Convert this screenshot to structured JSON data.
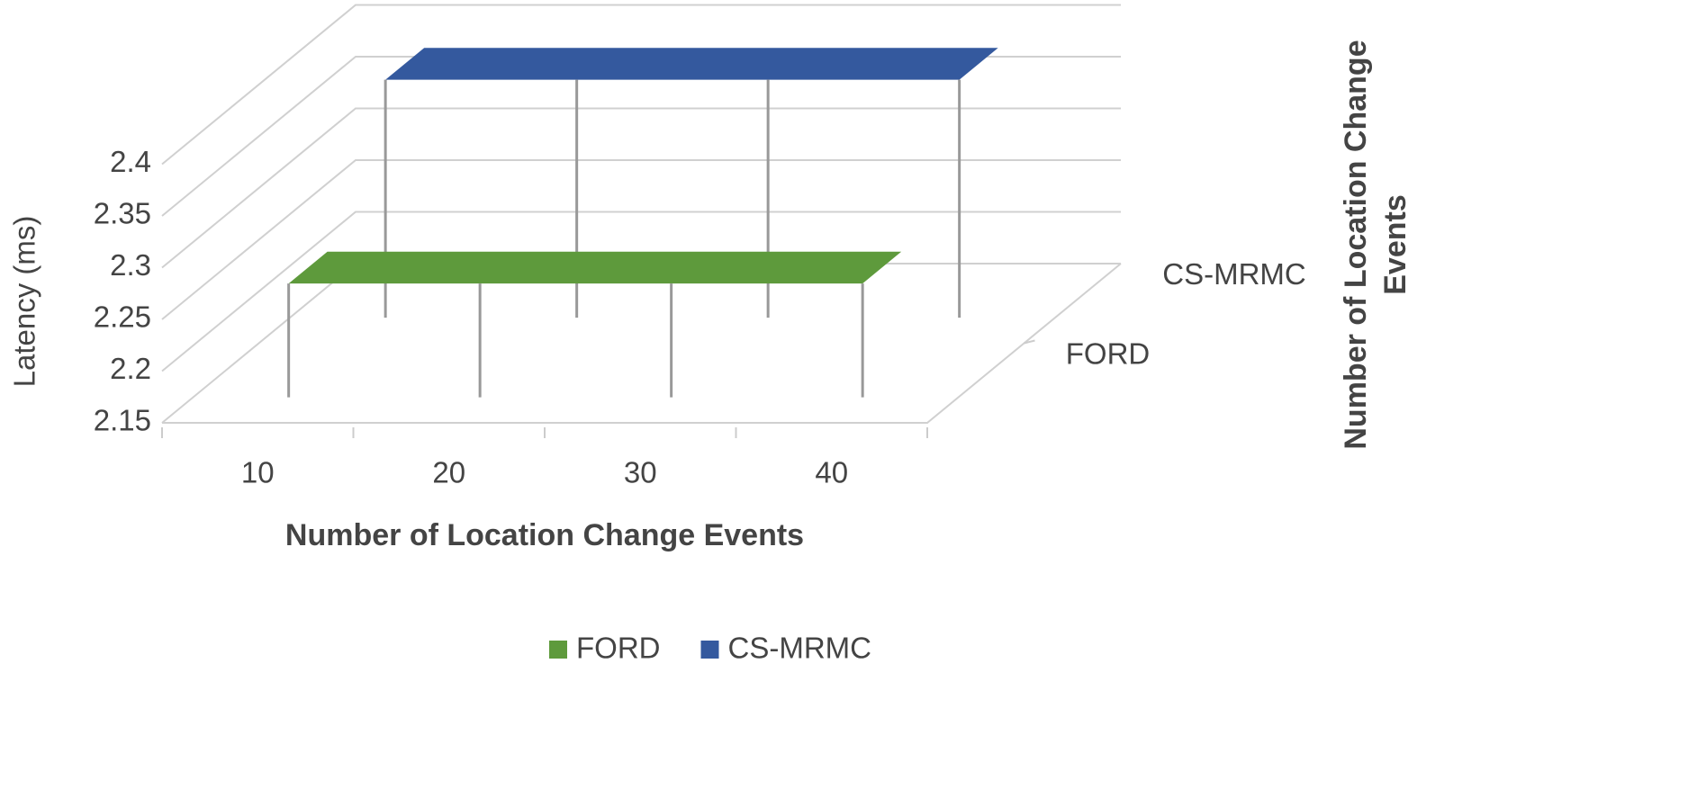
{
  "chart_data": {
    "type": "3d-line",
    "x_label": "Number of Location Change Events",
    "y_label": "Latency (ms)",
    "z_label": "Number of Location Change Events",
    "categories": [
      "10",
      "20",
      "30",
      "40"
    ],
    "series": [
      {
        "name": "FORD",
        "color": "#5e9a3c",
        "values": [
          2.26,
          2.26,
          2.26,
          2.26
        ]
      },
      {
        "name": "CS-MRMC",
        "color": "#34599e",
        "values": [
          2.38,
          2.38,
          2.38,
          2.38
        ]
      }
    ],
    "ylim": [
      2.15,
      2.4
    ],
    "yticks": [
      2.15,
      2.2,
      2.25,
      2.3,
      2.35,
      2.4
    ],
    "grid": true,
    "legend": "bottom"
  }
}
